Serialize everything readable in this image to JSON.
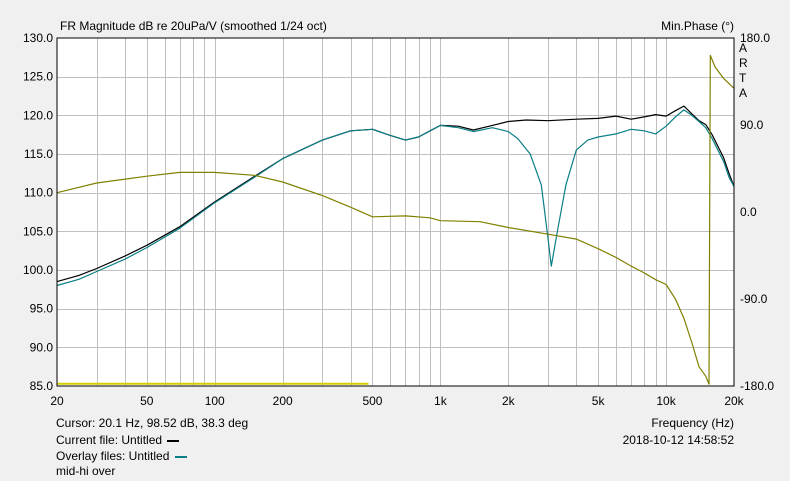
{
  "chart_data": {
    "type": "line",
    "title": "FR Magnitude dB re 20uPa/V (smoothed 1/24 oct)",
    "xlabel": "Frequency (Hz)",
    "ylabel_right": "Min.Phase (°)",
    "brand_letters": [
      "A",
      "R",
      "T",
      "A"
    ],
    "xscale": "log",
    "xlim": [
      20,
      20000
    ],
    "ylim": [
      85,
      130
    ],
    "y2lim": [
      -180,
      180
    ],
    "grid": true,
    "x_ticks": [
      20,
      50,
      100,
      200,
      500,
      1000,
      2000,
      5000,
      10000,
      20000
    ],
    "x_tick_labels": [
      "20",
      "50",
      "100",
      "200",
      "500",
      "1k",
      "2k",
      "5k",
      "10k",
      "20k"
    ],
    "y_ticks": [
      130,
      125,
      120,
      115,
      110,
      105,
      100,
      95,
      90,
      85
    ],
    "y_tick_labels": [
      "130.0",
      "125.0",
      "120.0",
      "115.0",
      "110.0",
      "105.0",
      "100.0",
      "95.0",
      "90.0",
      "85.0"
    ],
    "y2_ticks": [
      180,
      90,
      0,
      -90,
      -180
    ],
    "y2_tick_labels": [
      "180.0",
      "90.0",
      "0.0",
      "-90.0",
      "-180.0"
    ],
    "series": [
      {
        "color": "#000000",
        "axis": "left",
        "points": [
          [
            20,
            98.5
          ],
          [
            25,
            99.3
          ],
          [
            30,
            100.2
          ],
          [
            40,
            101.8
          ],
          [
            50,
            103.2
          ],
          [
            70,
            105.6
          ],
          [
            100,
            108.8
          ],
          [
            150,
            112.1
          ],
          [
            200,
            114.4
          ],
          [
            300,
            116.8
          ],
          [
            400,
            118.0
          ],
          [
            500,
            118.2
          ],
          [
            600,
            117.4
          ],
          [
            700,
            116.8
          ],
          [
            800,
            117.2
          ],
          [
            900,
            118.0
          ],
          [
            1000,
            118.7
          ],
          [
            1200,
            118.6
          ],
          [
            1400,
            118.1
          ],
          [
            1700,
            118.7
          ],
          [
            2000,
            119.2
          ],
          [
            2400,
            119.4
          ],
          [
            3000,
            119.3
          ],
          [
            4000,
            119.5
          ],
          [
            5000,
            119.6
          ],
          [
            6000,
            119.9
          ],
          [
            7000,
            119.5
          ],
          [
            8000,
            119.8
          ],
          [
            9000,
            120.1
          ],
          [
            10000,
            119.9
          ],
          [
            11000,
            120.6
          ],
          [
            12000,
            121.2
          ],
          [
            13000,
            120.2
          ],
          [
            14000,
            119.3
          ],
          [
            15000,
            118.8
          ],
          [
            16000,
            117.5
          ],
          [
            18000,
            114.5
          ],
          [
            19000,
            112.5
          ],
          [
            20000,
            110.8
          ]
        ]
      },
      {
        "color": "#0b7f86",
        "axis": "left",
        "points": [
          [
            20,
            98.0
          ],
          [
            25,
            98.8
          ],
          [
            30,
            99.8
          ],
          [
            40,
            101.4
          ],
          [
            50,
            102.9
          ],
          [
            70,
            105.4
          ],
          [
            100,
            108.7
          ],
          [
            150,
            112.0
          ],
          [
            200,
            114.4
          ],
          [
            300,
            116.8
          ],
          [
            400,
            118.0
          ],
          [
            500,
            118.2
          ],
          [
            600,
            117.4
          ],
          [
            700,
            116.8
          ],
          [
            800,
            117.2
          ],
          [
            900,
            118.0
          ],
          [
            1000,
            118.7
          ],
          [
            1200,
            118.4
          ],
          [
            1400,
            117.9
          ],
          [
            1700,
            118.4
          ],
          [
            2000,
            117.9
          ],
          [
            2200,
            117.0
          ],
          [
            2500,
            115.0
          ],
          [
            2800,
            111.0
          ],
          [
            3000,
            104.0
          ],
          [
            3100,
            100.5
          ],
          [
            3300,
            105.0
          ],
          [
            3600,
            111.0
          ],
          [
            4000,
            115.5
          ],
          [
            4500,
            116.8
          ],
          [
            5000,
            117.2
          ],
          [
            6000,
            117.6
          ],
          [
            7000,
            118.2
          ],
          [
            8000,
            118.0
          ],
          [
            9000,
            117.6
          ],
          [
            10000,
            118.6
          ],
          [
            11000,
            119.8
          ],
          [
            12000,
            120.7
          ],
          [
            13000,
            120.0
          ],
          [
            14000,
            119.2
          ],
          [
            15000,
            118.4
          ],
          [
            16000,
            117.0
          ],
          [
            18000,
            114.0
          ],
          [
            19000,
            112.0
          ],
          [
            20000,
            110.8
          ]
        ]
      },
      {
        "color": "#808000",
        "axis": "right",
        "points": [
          [
            20,
            20
          ],
          [
            30,
            30
          ],
          [
            50,
            37
          ],
          [
            70,
            41
          ],
          [
            100,
            41
          ],
          [
            150,
            38
          ],
          [
            200,
            31
          ],
          [
            300,
            17
          ],
          [
            400,
            5
          ],
          [
            500,
            -5
          ],
          [
            700,
            -4
          ],
          [
            900,
            -6
          ],
          [
            1000,
            -9
          ],
          [
            1500,
            -10
          ],
          [
            2000,
            -16
          ],
          [
            3000,
            -23
          ],
          [
            4000,
            -28
          ],
          [
            5000,
            -38
          ],
          [
            6000,
            -47
          ],
          [
            7000,
            -56
          ],
          [
            8000,
            -63
          ],
          [
            9000,
            -70
          ],
          [
            10000,
            -75
          ],
          [
            11000,
            -90
          ],
          [
            12000,
            -110
          ],
          [
            13000,
            -135
          ],
          [
            14000,
            -160
          ],
          [
            15000,
            -170
          ],
          [
            15500,
            -178
          ],
          [
            15700,
            162
          ],
          [
            16500,
            150
          ],
          [
            18000,
            138
          ],
          [
            20000,
            128
          ]
        ]
      },
      {
        "color": "#d2d200",
        "axis": "left",
        "points": [
          [
            20,
            85.3
          ],
          [
            480,
            85.3
          ]
        ]
      }
    ]
  },
  "info": {
    "cursor": "Cursor: 20.1 Hz, 98.52 dB, 38.3 deg",
    "current_file": "Current file: Untitled",
    "overlay_files": "Overlay files: Untitled",
    "comment": "mid-hi over",
    "frequency_label": "Frequency (Hz)",
    "datetime": "2018-10-12  14:58:52"
  },
  "colors": {
    "plot_bg": "#ffffff",
    "grid": "#c0c0c0",
    "panel_bg": "#f0f0f0",
    "current_swatch": "#000000",
    "overlay_swatch": "#0b7f86"
  }
}
